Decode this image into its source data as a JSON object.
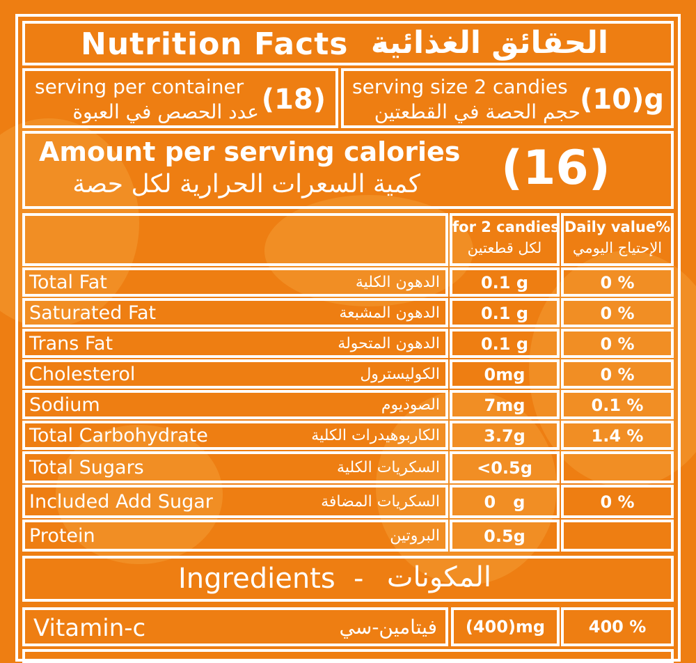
{
  "title": {
    "en": "Nutrition Facts",
    "sep": "-",
    "ar": "الحقائق الغذائية"
  },
  "serving_container": {
    "en": "serving per container",
    "ar": "عدد الحصص في العبوة",
    "value": "(18)"
  },
  "serving_size": {
    "en": "serving size 2 candies",
    "ar": "حجم الحصة في القطعتين",
    "value": "(10)g"
  },
  "calories": {
    "en": "Amount per serving calories",
    "ar": "كمية السعرات الحرارية لكل حصة",
    "value": "(16)"
  },
  "columns": {
    "amount_en": "for 2 candies",
    "amount_ar": "لكل قطعتين",
    "dv_en": "Daily value%",
    "dv_ar": "الإحتياج اليومي"
  },
  "nutrients": [
    {
      "en": "Total Fat",
      "ar": "الدهون الكلية",
      "amount": "0.1 g",
      "dv": "0 %"
    },
    {
      "en": "Saturated Fat",
      "ar": "الدهون المشبعة",
      "amount": "0.1 g",
      "dv": "0 %"
    },
    {
      "en": "Trans Fat",
      "ar": "الدهون المتحولة",
      "amount": "0.1 g",
      "dv": "0 %"
    },
    {
      "en": "Cholesterol",
      "ar": "الكوليسترول",
      "amount": "0mg",
      "dv": "0 %"
    },
    {
      "en": "Sodium",
      "ar": "الصوديوم",
      "amount": "7mg",
      "dv": "0.1 %"
    },
    {
      "en": "Total Carbohydrate",
      "ar": "الكاربوهيدرات الكلية",
      "amount": "3.7g",
      "dv": "1.4 %"
    },
    {
      "en": "Total Sugars",
      "ar": "السكريات الكلية",
      "amount": "<0.5g",
      "dv": ""
    },
    {
      "en": "Included Add Sugar",
      "ar": "السكريات المضافة",
      "amount": "0   g",
      "dv": "0 %"
    },
    {
      "en": "Protein",
      "ar": "البروتين",
      "amount": "0.5g",
      "dv": ""
    }
  ],
  "ingredients": {
    "en": "Ingredients",
    "sep": "-",
    "ar": "المكونات"
  },
  "vitamin": {
    "en": "Vitamin-c",
    "ar": "فيتامين-سي",
    "amount": "(400)mg",
    "dv": "400 %"
  },
  "colors": {
    "background": "#ee7e12",
    "text": "#ffffff",
    "blob": "#f5a23c"
  }
}
